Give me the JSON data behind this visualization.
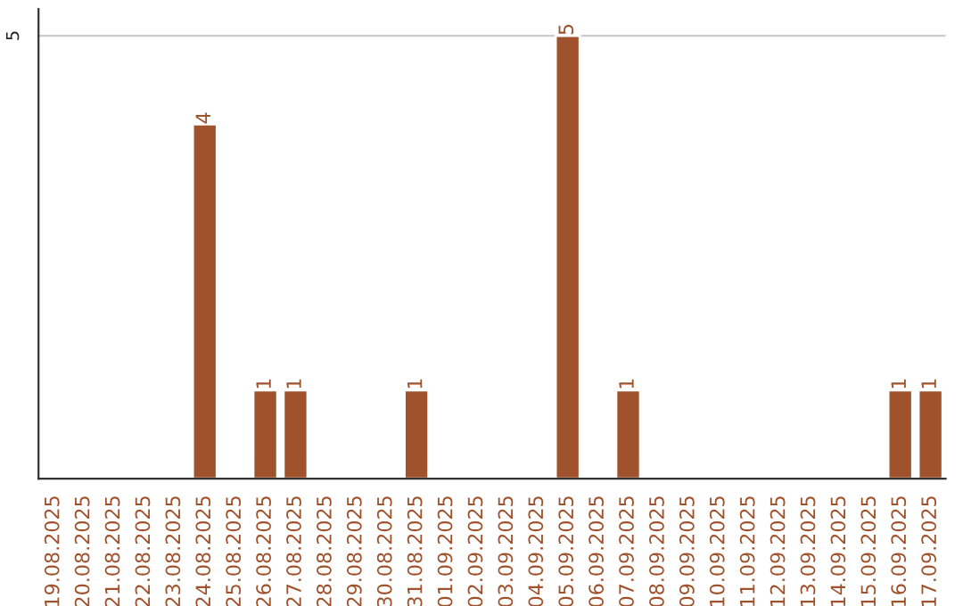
{
  "chart_data": {
    "type": "bar",
    "categories": [
      "19.08.2025",
      "20.08.2025",
      "21.08.2025",
      "22.08.2025",
      "23.08.2025",
      "24.08.2025",
      "25.08.2025",
      "26.08.2025",
      "27.08.2025",
      "28.08.2025",
      "29.08.2025",
      "30.08.2025",
      "31.08.2025",
      "01.09.2025",
      "02.09.2025",
      "03.09.2025",
      "04.09.2025",
      "05.09.2025",
      "06.09.2025",
      "07.09.2025",
      "08.09.2025",
      "09.09.2025",
      "10.09.2025",
      "11.09.2025",
      "12.09.2025",
      "13.09.2025",
      "14.09.2025",
      "15.09.2025",
      "16.09.2025",
      "17.09.2025"
    ],
    "values": [
      0,
      0,
      0,
      0,
      0,
      4,
      0,
      1,
      1,
      0,
      0,
      0,
      1,
      0,
      0,
      0,
      0,
      5,
      0,
      1,
      0,
      0,
      0,
      0,
      0,
      0,
      0,
      0,
      1,
      1
    ],
    "value_labels": [
      null,
      null,
      null,
      null,
      null,
      "4",
      null,
      "1",
      "1",
      null,
      null,
      null,
      "1",
      null,
      null,
      null,
      null,
      "5",
      null,
      "1",
      null,
      null,
      null,
      null,
      null,
      null,
      null,
      null,
      "1",
      "1"
    ],
    "color": "#a0522d",
    "ylim": [
      0,
      5.3
    ],
    "yticks": [
      5
    ],
    "grid": "y"
  }
}
